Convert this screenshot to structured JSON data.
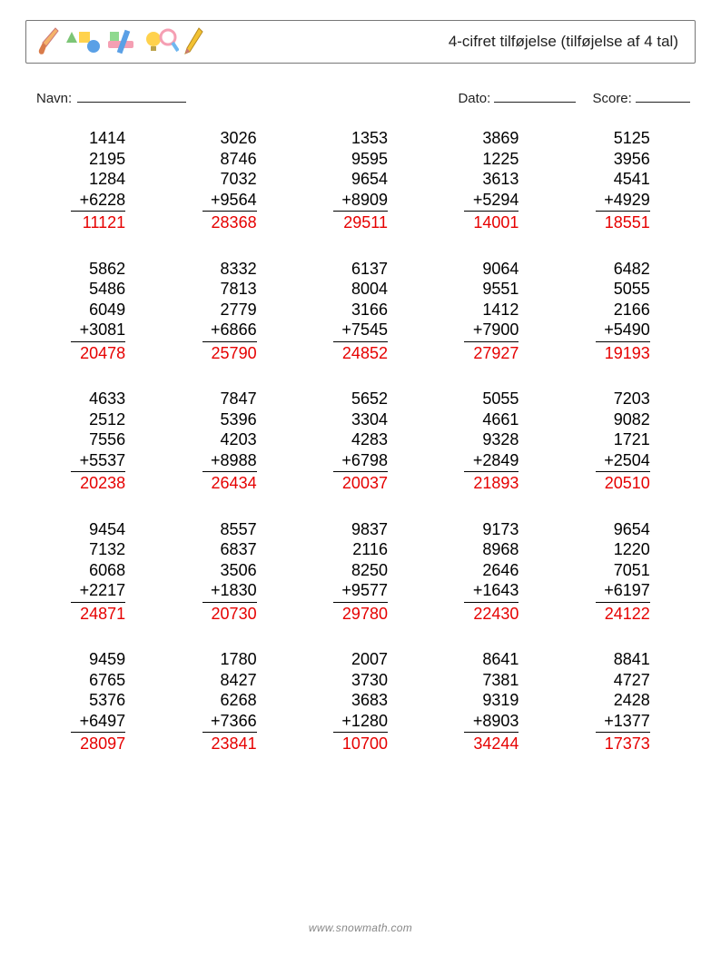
{
  "header": {
    "title": "4-cifret tilføjelse (tilføjelse af 4 tal)"
  },
  "info": {
    "name_label": "Navn:",
    "date_label": "Dato:",
    "score_label": "Score:"
  },
  "footer": {
    "url": "www.snowmath.com"
  },
  "style": {
    "answer_color": "#e60000",
    "text_color": "#000000",
    "border_color": "#777777",
    "font_size_problem": 18,
    "font_size_title": 17,
    "font_size_info": 15,
    "font_size_footer": 12,
    "operator": "+"
  },
  "icons": [
    {
      "name": "paintbrush",
      "color": "#f4a460"
    },
    {
      "name": "shapes",
      "colors": [
        "#7cc576",
        "#ffd24d",
        "#5aa0e6"
      ]
    },
    {
      "name": "eraser-ruler",
      "colors": [
        "#f59fb3",
        "#8fd98f",
        "#5aa0e6"
      ]
    },
    {
      "name": "magnifier-bulb",
      "colors": [
        "#f59fb3",
        "#ffd24d",
        "#6fb7f0"
      ]
    },
    {
      "name": "pencil",
      "color": "#f2c233"
    }
  ],
  "problems": [
    [
      {
        "addends": [
          1414,
          2195,
          1284,
          6228
        ],
        "answer": 11121
      },
      {
        "addends": [
          3026,
          8746,
          7032,
          9564
        ],
        "answer": 28368
      },
      {
        "addends": [
          1353,
          9595,
          9654,
          8909
        ],
        "answer": 29511
      },
      {
        "addends": [
          3869,
          1225,
          3613,
          5294
        ],
        "answer": 14001
      },
      {
        "addends": [
          5125,
          3956,
          4541,
          4929
        ],
        "answer": 18551
      }
    ],
    [
      {
        "addends": [
          5862,
          5486,
          6049,
          3081
        ],
        "answer": 20478
      },
      {
        "addends": [
          8332,
          7813,
          2779,
          6866
        ],
        "answer": 25790
      },
      {
        "addends": [
          6137,
          8004,
          3166,
          7545
        ],
        "answer": 24852
      },
      {
        "addends": [
          9064,
          9551,
          1412,
          7900
        ],
        "answer": 27927
      },
      {
        "addends": [
          6482,
          5055,
          2166,
          5490
        ],
        "answer": 19193
      }
    ],
    [
      {
        "addends": [
          4633,
          2512,
          7556,
          5537
        ],
        "answer": 20238
      },
      {
        "addends": [
          7847,
          5396,
          4203,
          8988
        ],
        "answer": 26434
      },
      {
        "addends": [
          5652,
          3304,
          4283,
          6798
        ],
        "answer": 20037
      },
      {
        "addends": [
          5055,
          4661,
          9328,
          2849
        ],
        "answer": 21893
      },
      {
        "addends": [
          7203,
          9082,
          1721,
          2504
        ],
        "answer": 20510
      }
    ],
    [
      {
        "addends": [
          9454,
          7132,
          6068,
          2217
        ],
        "answer": 24871
      },
      {
        "addends": [
          8557,
          6837,
          3506,
          1830
        ],
        "answer": 20730
      },
      {
        "addends": [
          9837,
          2116,
          8250,
          9577
        ],
        "answer": 29780
      },
      {
        "addends": [
          9173,
          8968,
          2646,
          1643
        ],
        "answer": 22430
      },
      {
        "addends": [
          9654,
          1220,
          7051,
          6197
        ],
        "answer": 24122
      }
    ],
    [
      {
        "addends": [
          9459,
          6765,
          5376,
          6497
        ],
        "answer": 28097
      },
      {
        "addends": [
          1780,
          8427,
          6268,
          7366
        ],
        "answer": 23841
      },
      {
        "addends": [
          2007,
          3730,
          3683,
          1280
        ],
        "answer": 10700
      },
      {
        "addends": [
          8641,
          7381,
          9319,
          8903
        ],
        "answer": 34244
      },
      {
        "addends": [
          8841,
          4727,
          2428,
          1377
        ],
        "answer": 17373
      }
    ]
  ]
}
